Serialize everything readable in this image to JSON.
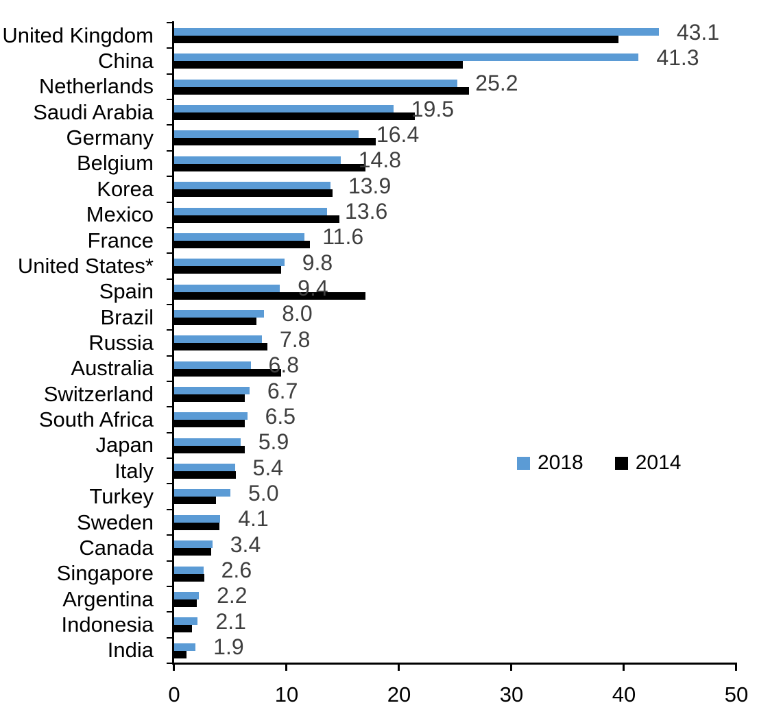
{
  "chart_data": {
    "type": "bar",
    "orientation": "horizontal",
    "title": "",
    "xlabel": "",
    "ylabel": "",
    "grid": false,
    "xlim": [
      0,
      50
    ],
    "x_ticks": [
      "0",
      "10",
      "20",
      "30",
      "40",
      "50"
    ],
    "legend_position": "center-right",
    "categories": [
      "United Kingdom",
      "China",
      "Netherlands",
      "Saudi Arabia",
      "Germany",
      "Belgium",
      "Korea",
      "Mexico",
      "France",
      "United States*",
      "Spain",
      "Brazil",
      "Russia",
      "Australia",
      "Switzerland",
      "South Africa",
      "Japan",
      "Italy",
      "Turkey",
      "Sweden",
      "Canada",
      "Singapore",
      "Argentina",
      "Indonesia",
      "India"
    ],
    "series": [
      {
        "name": "2018",
        "color": "#5B9BD5",
        "values": [
          43.1,
          41.3,
          25.2,
          19.5,
          16.4,
          14.8,
          13.9,
          13.6,
          11.6,
          9.8,
          9.4,
          8.0,
          7.8,
          6.8,
          6.7,
          6.5,
          5.9,
          5.4,
          5.0,
          4.1,
          3.4,
          2.6,
          2.2,
          2.1,
          1.9
        ]
      },
      {
        "name": "2014",
        "color": "#000000",
        "values": [
          39.5,
          25.7,
          26.2,
          21.4,
          17.9,
          17.0,
          14.1,
          14.7,
          12.1,
          9.5,
          17.0,
          7.3,
          8.3,
          9.5,
          6.3,
          6.3,
          6.3,
          5.5,
          3.7,
          4.0,
          3.3,
          2.7,
          2.0,
          1.6,
          1.1
        ]
      }
    ],
    "data_labels": {
      "attached_series": "2018",
      "color": "#3F3F3F",
      "values": [
        "43.1",
        "41.3",
        "25.2",
        "19.5",
        "16.4",
        "14.8",
        "13.9",
        "13.6",
        "11.6",
        "9.8",
        "9.4",
        "8.0",
        "7.8",
        "6.8",
        "6.7",
        "6.5",
        "5.9",
        "5.4",
        "5.0",
        "4.1",
        "3.4",
        "2.6",
        "2.2",
        "2.1",
        "1.9"
      ]
    }
  }
}
